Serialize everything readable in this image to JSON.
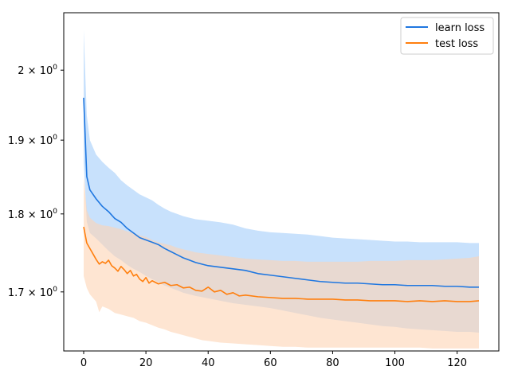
{
  "chart_data": {
    "type": "line",
    "title": "",
    "xlabel": "",
    "ylabel": "",
    "y_scale": "log",
    "xlim": [
      -6.4,
      133.4
    ],
    "ylim": [
      1.628,
      2.086
    ],
    "grid": false,
    "legend_position": "upper right",
    "x_ticks": [
      0,
      20,
      40,
      60,
      80,
      100,
      120
    ],
    "x_tick_labels": [
      "0",
      "20",
      "40",
      "60",
      "80",
      "100",
      "120"
    ],
    "y_ticks": [
      1.7,
      1.8,
      1.9,
      2.0
    ],
    "y_tick_labels": [
      {
        "base": "1.7 × 10",
        "exp": "0"
      },
      {
        "base": "1.8 × 10",
        "exp": "0"
      },
      {
        "base": "1.9 × 10",
        "exp": "0"
      },
      {
        "base": "2 × 10",
        "exp": "0"
      }
    ],
    "series": [
      {
        "name": "learn loss",
        "color": "#1f77e0",
        "band_color": "#b8d8fb",
        "points": [
          [
            0,
            1.96
          ],
          [
            1,
            1.85
          ],
          [
            2,
            1.832
          ],
          [
            4,
            1.82
          ],
          [
            6,
            1.81
          ],
          [
            8,
            1.803
          ],
          [
            10,
            1.794
          ],
          [
            12,
            1.789
          ],
          [
            14,
            1.781
          ],
          [
            16,
            1.775
          ],
          [
            18,
            1.769
          ],
          [
            20,
            1.766
          ],
          [
            22,
            1.763
          ],
          [
            24,
            1.76
          ],
          [
            26,
            1.755
          ],
          [
            28,
            1.751
          ],
          [
            30,
            1.747
          ],
          [
            32,
            1.743
          ],
          [
            34,
            1.74
          ],
          [
            36,
            1.737
          ],
          [
            38,
            1.735
          ],
          [
            40,
            1.733
          ],
          [
            44,
            1.731
          ],
          [
            48,
            1.729
          ],
          [
            52,
            1.727
          ],
          [
            56,
            1.723
          ],
          [
            60,
            1.721
          ],
          [
            64,
            1.719
          ],
          [
            68,
            1.717
          ],
          [
            72,
            1.715
          ],
          [
            76,
            1.713
          ],
          [
            80,
            1.712
          ],
          [
            84,
            1.711
          ],
          [
            88,
            1.711
          ],
          [
            92,
            1.71
          ],
          [
            96,
            1.709
          ],
          [
            100,
            1.709
          ],
          [
            104,
            1.708
          ],
          [
            108,
            1.708
          ],
          [
            112,
            1.708
          ],
          [
            116,
            1.707
          ],
          [
            120,
            1.707
          ],
          [
            124,
            1.706
          ],
          [
            127,
            1.706
          ]
        ],
        "upper": [
          [
            0,
            2.06
          ],
          [
            1,
            1.935
          ],
          [
            2,
            1.9
          ],
          [
            4,
            1.88
          ],
          [
            6,
            1.87
          ],
          [
            8,
            1.862
          ],
          [
            10,
            1.855
          ],
          [
            12,
            1.845
          ],
          [
            14,
            1.838
          ],
          [
            16,
            1.832
          ],
          [
            18,
            1.826
          ],
          [
            20,
            1.822
          ],
          [
            22,
            1.818
          ],
          [
            24,
            1.812
          ],
          [
            26,
            1.807
          ],
          [
            28,
            1.803
          ],
          [
            30,
            1.8
          ],
          [
            32,
            1.797
          ],
          [
            34,
            1.795
          ],
          [
            36,
            1.793
          ],
          [
            40,
            1.791
          ],
          [
            44,
            1.789
          ],
          [
            48,
            1.786
          ],
          [
            52,
            1.781
          ],
          [
            56,
            1.778
          ],
          [
            60,
            1.776
          ],
          [
            64,
            1.775
          ],
          [
            68,
            1.774
          ],
          [
            72,
            1.773
          ],
          [
            76,
            1.771
          ],
          [
            80,
            1.769
          ],
          [
            84,
            1.768
          ],
          [
            88,
            1.767
          ],
          [
            92,
            1.766
          ],
          [
            96,
            1.765
          ],
          [
            100,
            1.764
          ],
          [
            104,
            1.764
          ],
          [
            108,
            1.763
          ],
          [
            112,
            1.763
          ],
          [
            116,
            1.763
          ],
          [
            120,
            1.763
          ],
          [
            124,
            1.762
          ],
          [
            127,
            1.762
          ]
        ],
        "lower": [
          [
            0,
            1.87
          ],
          [
            1,
            1.79
          ],
          [
            2,
            1.775
          ],
          [
            4,
            1.768
          ],
          [
            6,
            1.76
          ],
          [
            8,
            1.752
          ],
          [
            10,
            1.745
          ],
          [
            12,
            1.74
          ],
          [
            14,
            1.734
          ],
          [
            16,
            1.729
          ],
          [
            18,
            1.725
          ],
          [
            20,
            1.72
          ],
          [
            22,
            1.716
          ],
          [
            24,
            1.712
          ],
          [
            26,
            1.708
          ],
          [
            28,
            1.705
          ],
          [
            30,
            1.702
          ],
          [
            32,
            1.699
          ],
          [
            34,
            1.697
          ],
          [
            36,
            1.695
          ],
          [
            40,
            1.692
          ],
          [
            44,
            1.689
          ],
          [
            48,
            1.686
          ],
          [
            52,
            1.684
          ],
          [
            56,
            1.682
          ],
          [
            60,
            1.68
          ],
          [
            64,
            1.677
          ],
          [
            68,
            1.674
          ],
          [
            72,
            1.671
          ],
          [
            76,
            1.668
          ],
          [
            80,
            1.666
          ],
          [
            84,
            1.664
          ],
          [
            88,
            1.662
          ],
          [
            92,
            1.66
          ],
          [
            96,
            1.658
          ],
          [
            100,
            1.657
          ],
          [
            104,
            1.655
          ],
          [
            108,
            1.654
          ],
          [
            112,
            1.653
          ],
          [
            116,
            1.652
          ],
          [
            120,
            1.651
          ],
          [
            124,
            1.651
          ],
          [
            127,
            1.65
          ]
        ]
      },
      {
        "name": "test loss",
        "color": "#ff7f0e",
        "band_color": "#fdd3b4",
        "points": [
          [
            0,
            1.783
          ],
          [
            1,
            1.762
          ],
          [
            2,
            1.755
          ],
          [
            3,
            1.748
          ],
          [
            4,
            1.741
          ],
          [
            5,
            1.735
          ],
          [
            6,
            1.738
          ],
          [
            7,
            1.736
          ],
          [
            8,
            1.74
          ],
          [
            9,
            1.733
          ],
          [
            10,
            1.73
          ],
          [
            11,
            1.726
          ],
          [
            12,
            1.732
          ],
          [
            13,
            1.728
          ],
          [
            14,
            1.723
          ],
          [
            15,
            1.727
          ],
          [
            16,
            1.72
          ],
          [
            17,
            1.722
          ],
          [
            18,
            1.716
          ],
          [
            19,
            1.713
          ],
          [
            20,
            1.718
          ],
          [
            21,
            1.711
          ],
          [
            22,
            1.714
          ],
          [
            24,
            1.71
          ],
          [
            26,
            1.712
          ],
          [
            28,
            1.708
          ],
          [
            30,
            1.709
          ],
          [
            32,
            1.705
          ],
          [
            34,
            1.706
          ],
          [
            36,
            1.702
          ],
          [
            38,
            1.701
          ],
          [
            40,
            1.706
          ],
          [
            42,
            1.7
          ],
          [
            44,
            1.702
          ],
          [
            46,
            1.697
          ],
          [
            48,
            1.699
          ],
          [
            50,
            1.695
          ],
          [
            52,
            1.696
          ],
          [
            56,
            1.694
          ],
          [
            60,
            1.693
          ],
          [
            64,
            1.692
          ],
          [
            68,
            1.692
          ],
          [
            72,
            1.691
          ],
          [
            76,
            1.691
          ],
          [
            80,
            1.691
          ],
          [
            84,
            1.69
          ],
          [
            88,
            1.69
          ],
          [
            92,
            1.689
          ],
          [
            96,
            1.689
          ],
          [
            100,
            1.689
          ],
          [
            104,
            1.688
          ],
          [
            108,
            1.689
          ],
          [
            112,
            1.688
          ],
          [
            116,
            1.689
          ],
          [
            120,
            1.688
          ],
          [
            124,
            1.688
          ],
          [
            127,
            1.689
          ]
        ],
        "upper": [
          [
            0,
            1.85
          ],
          [
            1,
            1.805
          ],
          [
            2,
            1.795
          ],
          [
            4,
            1.788
          ],
          [
            6,
            1.785
          ],
          [
            8,
            1.784
          ],
          [
            10,
            1.782
          ],
          [
            12,
            1.78
          ],
          [
            14,
            1.777
          ],
          [
            16,
            1.775
          ],
          [
            18,
            1.772
          ],
          [
            20,
            1.77
          ],
          [
            22,
            1.766
          ],
          [
            24,
            1.763
          ],
          [
            26,
            1.761
          ],
          [
            28,
            1.759
          ],
          [
            30,
            1.756
          ],
          [
            32,
            1.754
          ],
          [
            34,
            1.752
          ],
          [
            36,
            1.75
          ],
          [
            38,
            1.749
          ],
          [
            40,
            1.748
          ],
          [
            44,
            1.746
          ],
          [
            48,
            1.744
          ],
          [
            52,
            1.742
          ],
          [
            56,
            1.741
          ],
          [
            60,
            1.74
          ],
          [
            64,
            1.739
          ],
          [
            68,
            1.739
          ],
          [
            72,
            1.738
          ],
          [
            76,
            1.738
          ],
          [
            80,
            1.738
          ],
          [
            84,
            1.738
          ],
          [
            88,
            1.738
          ],
          [
            92,
            1.739
          ],
          [
            96,
            1.739
          ],
          [
            100,
            1.739
          ],
          [
            104,
            1.74
          ],
          [
            108,
            1.74
          ],
          [
            112,
            1.74
          ],
          [
            116,
            1.741
          ],
          [
            120,
            1.742
          ],
          [
            124,
            1.743
          ],
          [
            127,
            1.745
          ]
        ],
        "lower": [
          [
            0,
            1.72
          ],
          [
            1,
            1.705
          ],
          [
            2,
            1.697
          ],
          [
            4,
            1.688
          ],
          [
            5,
            1.675
          ],
          [
            6,
            1.682
          ],
          [
            8,
            1.679
          ],
          [
            10,
            1.674
          ],
          [
            12,
            1.672
          ],
          [
            14,
            1.67
          ],
          [
            16,
            1.668
          ],
          [
            18,
            1.664
          ],
          [
            20,
            1.662
          ],
          [
            22,
            1.659
          ],
          [
            24,
            1.656
          ],
          [
            26,
            1.654
          ],
          [
            28,
            1.651
          ],
          [
            30,
            1.649
          ],
          [
            32,
            1.647
          ],
          [
            34,
            1.645
          ],
          [
            36,
            1.643
          ],
          [
            38,
            1.641
          ],
          [
            40,
            1.64
          ],
          [
            44,
            1.638
          ],
          [
            48,
            1.637
          ],
          [
            52,
            1.636
          ],
          [
            56,
            1.635
          ],
          [
            60,
            1.634
          ],
          [
            64,
            1.633
          ],
          [
            68,
            1.633
          ],
          [
            72,
            1.632
          ],
          [
            76,
            1.632
          ],
          [
            80,
            1.632
          ],
          [
            84,
            1.632
          ],
          [
            88,
            1.632
          ],
          [
            92,
            1.632
          ],
          [
            96,
            1.632
          ],
          [
            100,
            1.632
          ],
          [
            104,
            1.632
          ],
          [
            108,
            1.632
          ],
          [
            112,
            1.631
          ],
          [
            116,
            1.631
          ],
          [
            120,
            1.631
          ],
          [
            124,
            1.631
          ],
          [
            127,
            1.631
          ]
        ]
      }
    ]
  }
}
